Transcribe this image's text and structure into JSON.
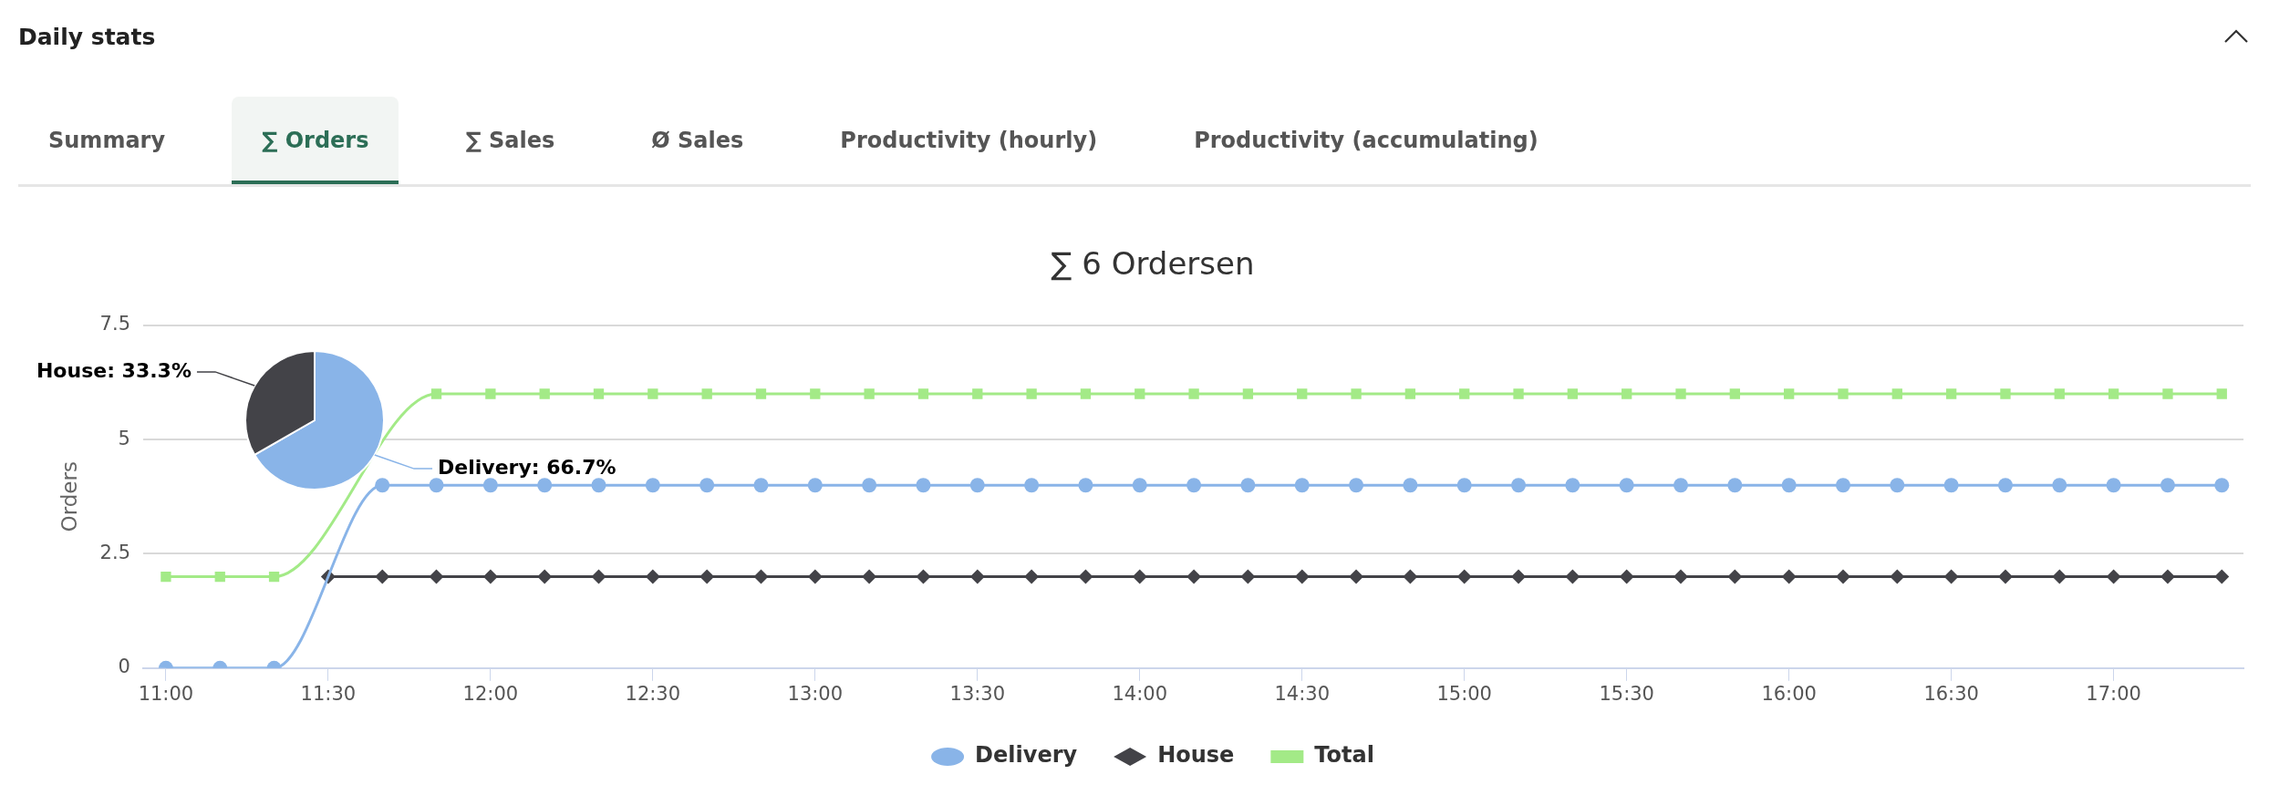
{
  "chart_data": [
    {
      "type": "other",
      "title": "Daily stats",
      "annotations": [
        "Summary",
        "∑ Orders",
        "∑ Sales",
        "Ø Sales",
        "Productivity (hourly)",
        "Productivity (accumulating)"
      ]
    },
    {
      "type": "line",
      "title": "∑ 6 Ordersen",
      "ylabel": "Orders",
      "x": [
        11,
        11.1667,
        11.3333,
        11.5,
        11.6667,
        11.8333,
        12,
        12.1667,
        12.3333,
        12.5,
        12.6667,
        12.8333,
        13,
        13.1667,
        13.3333,
        13.5,
        13.6667,
        13.8333,
        14,
        14.1667,
        14.3333,
        14.5,
        14.6667,
        14.8333,
        15,
        15.1667,
        15.3333,
        15.5,
        15.6667,
        15.8333,
        16,
        16.1667,
        16.3333,
        16.5,
        16.6667,
        16.8333,
        17,
        17.1667,
        17.3333
      ],
      "series": [
        {
          "name": "Delivery",
          "color": "#89b4e8",
          "marker": "circle",
          "values": [
            0,
            0,
            0,
            null,
            4,
            4,
            4,
            4,
            4,
            4,
            4,
            4,
            4,
            4,
            4,
            4,
            4,
            4,
            4,
            4,
            4,
            4,
            4,
            4,
            4,
            4,
            4,
            4,
            4,
            4,
            4,
            4,
            4,
            4,
            4,
            4,
            4,
            4,
            4
          ]
        },
        {
          "name": "House",
          "color": "#434348",
          "marker": "diamond",
          "values": [
            null,
            null,
            null,
            2,
            2,
            2,
            2,
            2,
            2,
            2,
            2,
            2,
            2,
            2,
            2,
            2,
            2,
            2,
            2,
            2,
            2,
            2,
            2,
            2,
            2,
            2,
            2,
            2,
            2,
            2,
            2,
            2,
            2,
            2,
            2,
            2,
            2,
            2,
            2
          ]
        },
        {
          "name": "Total",
          "color": "#a3ea87",
          "marker": "square",
          "values": [
            2,
            2,
            2,
            null,
            null,
            6,
            6,
            6,
            6,
            6,
            6,
            6,
            6,
            6,
            6,
            6,
            6,
            6,
            6,
            6,
            6,
            6,
            6,
            6,
            6,
            6,
            6,
            6,
            6,
            6,
            6,
            6,
            6,
            6,
            6,
            6,
            6,
            6,
            6
          ]
        }
      ],
      "xlim": [
        10.93,
        17.4
      ],
      "xticks": [
        {
          "value": 11,
          "label": "11:00"
        },
        {
          "value": 11.5,
          "label": "11:30"
        },
        {
          "value": 12,
          "label": "12:00"
        },
        {
          "value": 12.5,
          "label": "12:30"
        },
        {
          "value": 13,
          "label": "13:00"
        },
        {
          "value": 13.5,
          "label": "13:30"
        },
        {
          "value": 14,
          "label": "14:00"
        },
        {
          "value": 14.5,
          "label": "14:30"
        },
        {
          "value": 15,
          "label": "15:00"
        },
        {
          "value": 15.5,
          "label": "15:30"
        },
        {
          "value": 16,
          "label": "16:00"
        },
        {
          "value": 16.5,
          "label": "16:30"
        },
        {
          "value": 17,
          "label": "17:00"
        }
      ],
      "ylim": [
        0,
        7.5
      ],
      "yticks": [
        0,
        2.5,
        5,
        7.5
      ],
      "grid": "y",
      "legend": "bottom",
      "line_style": "solid"
    },
    {
      "type": "pie",
      "categories": [
        "Delivery",
        "House"
      ],
      "values": [
        66.7,
        33.3
      ],
      "colors": [
        "#89b4e8",
        "#434348"
      ],
      "value_labels": [
        "66.7%",
        "33.3%"
      ]
    }
  ]
}
